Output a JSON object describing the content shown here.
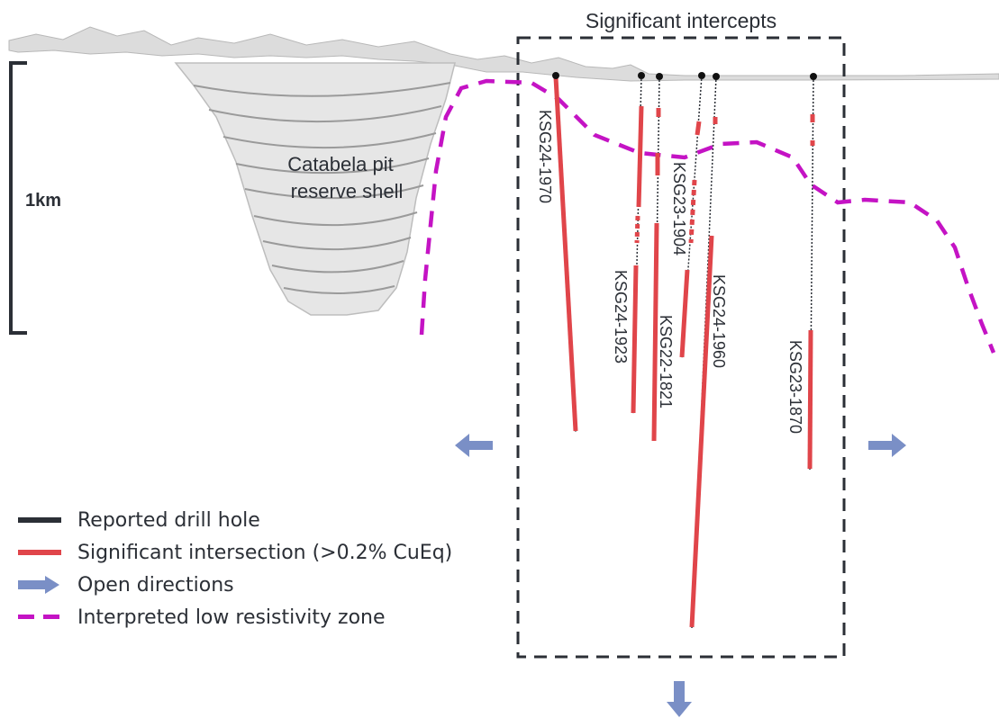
{
  "title": "Significant intercepts",
  "scale_label": "1km",
  "pit_label_line1": "Catabela pit",
  "pit_label_line2": "reserve shell",
  "colors": {
    "drill_hole": "#2b2f36",
    "intersection": "#e0454a",
    "open_direction": "#7a8fc6",
    "resistivity": "#c413c4",
    "box": "#2b2f36"
  },
  "holes": [
    {
      "id": "KSG24-1970"
    },
    {
      "id": "KSG24-1923"
    },
    {
      "id": "KSG22-1821"
    },
    {
      "id": "KSG23-1904"
    },
    {
      "id": "KSG24-1960"
    },
    {
      "id": "KSG23-1870"
    }
  ],
  "legend": [
    {
      "label": "Reported drill hole",
      "icon": "black-line"
    },
    {
      "label": "Significant intersection (>0.2% CuEq)",
      "icon": "red-line"
    },
    {
      "label": "Open directions",
      "icon": "blue-arrow-icon"
    },
    {
      "label": "Interpreted low resistivity zone",
      "icon": "magenta-dash"
    }
  ]
}
